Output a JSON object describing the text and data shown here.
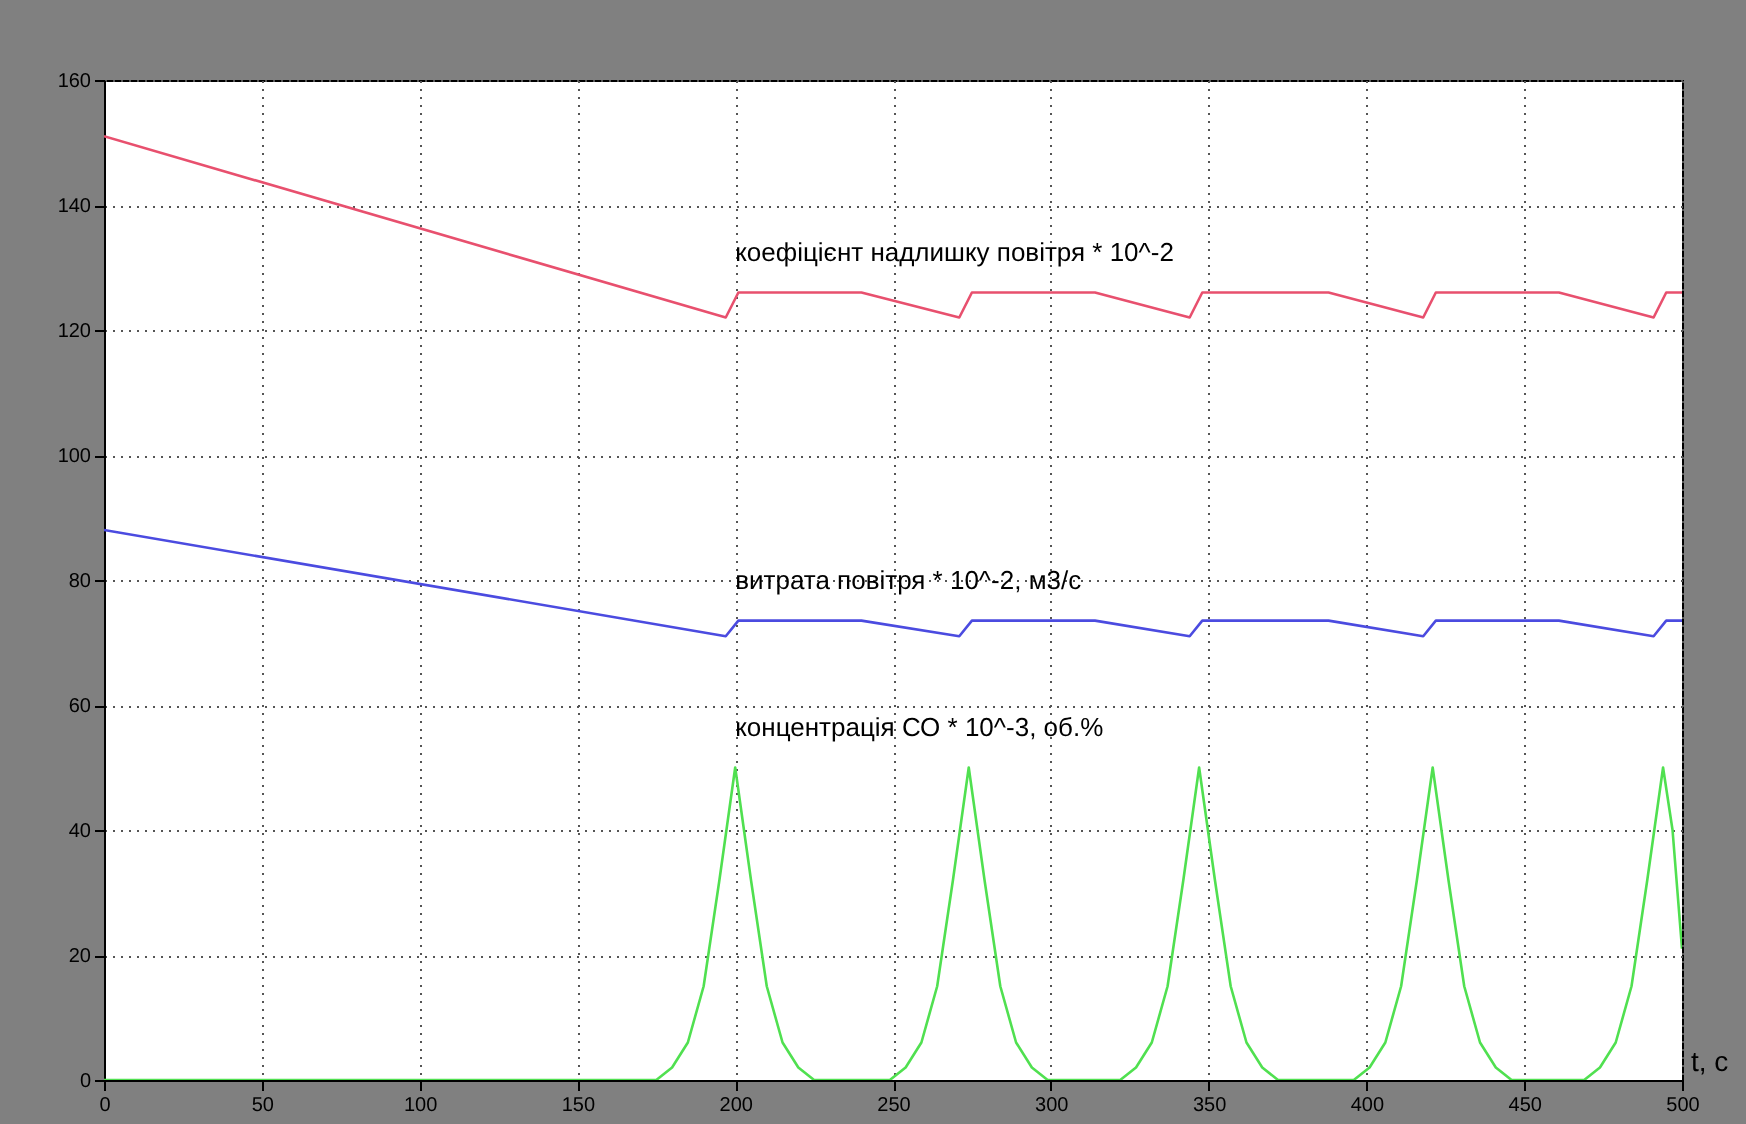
{
  "chart_data": {
    "type": "line",
    "xlabel": "t, c",
    "xlim": [
      0,
      500
    ],
    "xticks": [
      0,
      50,
      100,
      150,
      200,
      250,
      300,
      350,
      400,
      450,
      500
    ],
    "ylim": [
      0,
      160
    ],
    "yticks": [
      0,
      20,
      40,
      60,
      80,
      100,
      120,
      140,
      160
    ],
    "grid": true,
    "line_style": "solid",
    "series": [
      {
        "name": "коефіцієнт надлишку повітря * 10^-2",
        "color": "#e8506e",
        "x": [
          0,
          197,
          201,
          240,
          271,
          275,
          314,
          344,
          348,
          388,
          418,
          422,
          461,
          491,
          495,
          500
        ],
        "values": [
          151,
          122,
          126,
          126,
          122,
          126,
          126,
          122,
          126,
          126,
          122,
          126,
          126,
          122,
          126,
          126
        ]
      },
      {
        "name": "витрата повітря * 10^-2, м3/с",
        "color": "#4b4be0",
        "x": [
          0,
          197,
          201,
          240,
          271,
          275,
          314,
          344,
          348,
          388,
          418,
          422,
          461,
          491,
          495,
          500
        ],
        "values": [
          88,
          71,
          73.5,
          73.5,
          71,
          73.5,
          73.5,
          71,
          73.5,
          73.5,
          71,
          73.5,
          73.5,
          71,
          73.5,
          73.5
        ]
      },
      {
        "name": "концентрація СО * 10^-3, об.%",
        "color": "#50e050",
        "x": [
          0,
          175,
          180,
          185,
          190,
          195,
          200,
          205,
          210,
          215,
          220,
          225,
          249,
          254,
          259,
          264,
          269,
          274,
          279,
          284,
          289,
          294,
          299,
          322,
          327,
          332,
          337,
          342,
          347,
          352,
          357,
          362,
          367,
          372,
          396,
          401,
          406,
          411,
          416,
          421,
          426,
          431,
          436,
          441,
          446,
          469,
          474,
          479,
          484,
          489,
          494,
          497,
          500
        ],
        "values": [
          0,
          0,
          2,
          6,
          15,
          32,
          50,
          32,
          15,
          6,
          2,
          0,
          0,
          2,
          6,
          15,
          32,
          50,
          32,
          15,
          6,
          2,
          0,
          0,
          2,
          6,
          15,
          32,
          50,
          32,
          15,
          6,
          2,
          0,
          0,
          2,
          6,
          15,
          32,
          50,
          32,
          15,
          6,
          2,
          0,
          0,
          2,
          6,
          15,
          32,
          50,
          40,
          21
        ]
      }
    ]
  }
}
